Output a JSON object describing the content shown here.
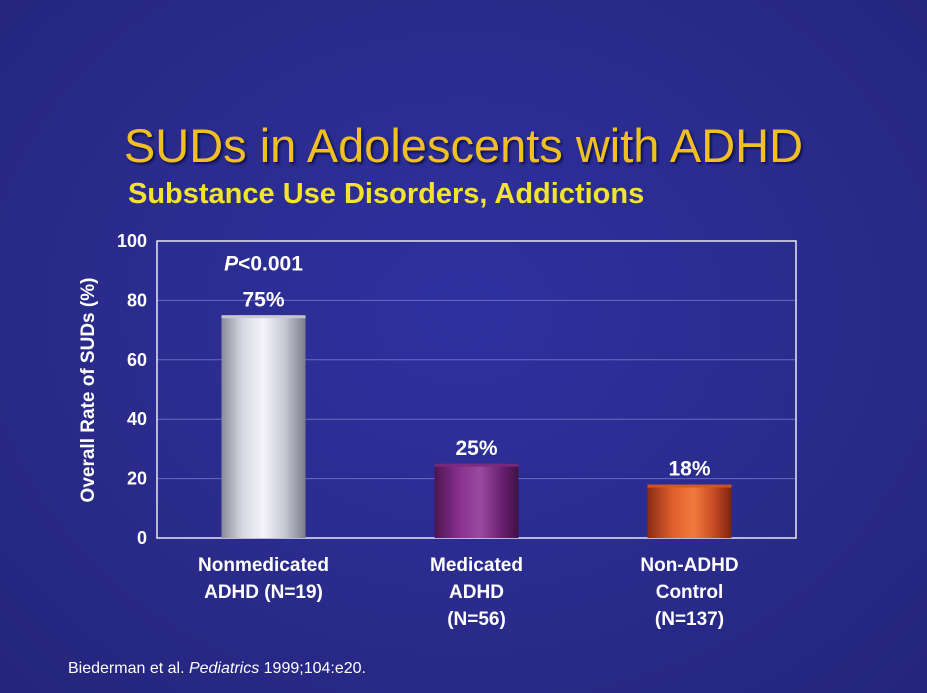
{
  "title": "SUDs in Adolescents with ADHD",
  "subtitle": "Substance  Use Disorders, Addictions",
  "citation": {
    "authors": "Biederman et al. ",
    "journal": "Pediatrics",
    "details": " 1999;104:e20."
  },
  "annotation": {
    "p_letter": "P",
    "p_rest": "<0.001"
  },
  "chart_data": {
    "type": "bar",
    "ylabel": "Overall Rate of SUDs (%)",
    "ylim": [
      0,
      100
    ],
    "yticks": [
      "0",
      "20",
      "40",
      "60",
      "80",
      "100"
    ],
    "grid": true,
    "categories": [
      [
        "Nonmedicated",
        "ADHD (N=19)"
      ],
      [
        "Medicated",
        "ADHD",
        "(N=56)"
      ],
      [
        "Non-ADHD",
        "Control",
        "(N=137)"
      ]
    ],
    "values": [
      75,
      25,
      18
    ],
    "labels": [
      "75%",
      "25%",
      "18%"
    ],
    "colors": [
      "#c8c8d2",
      "#7a2a7e",
      "#d0562a"
    ]
  }
}
